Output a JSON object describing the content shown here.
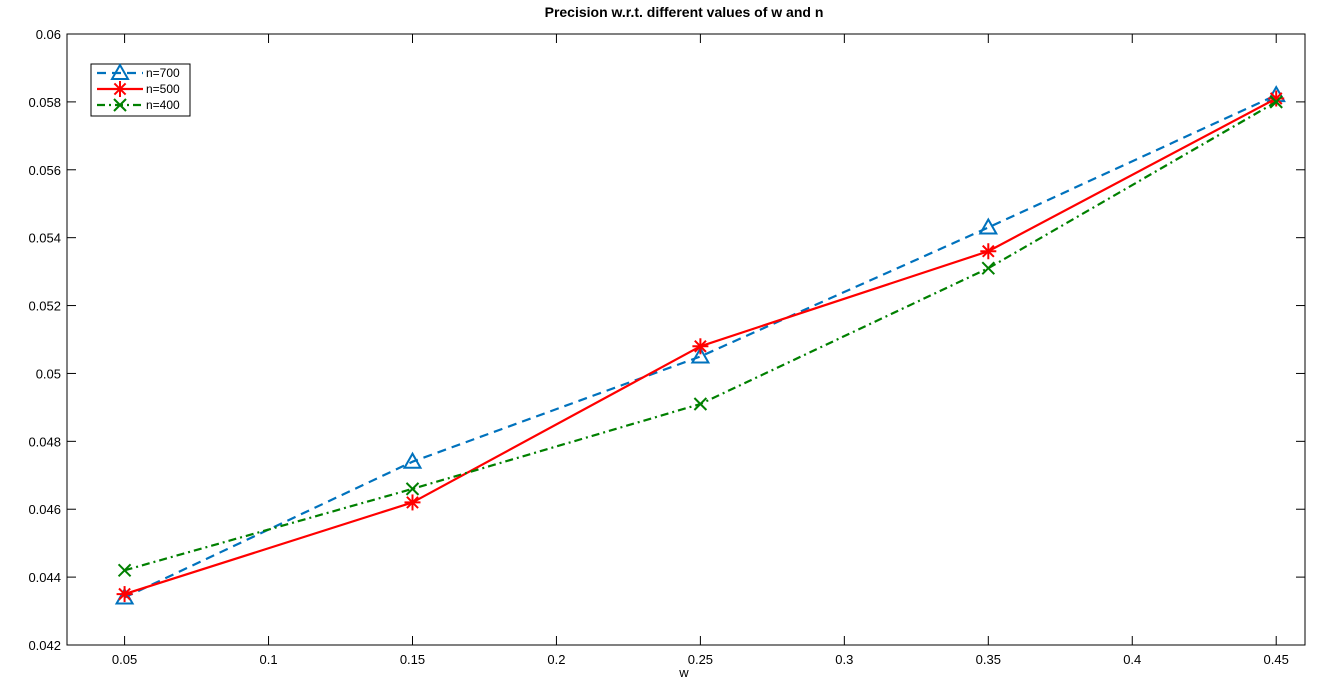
{
  "chart_data": {
    "type": "line",
    "title": "Precision w.r.t. different values of w and n",
    "xlabel": "w",
    "ylabel": "",
    "xlim": [
      0.03,
      0.46
    ],
    "ylim": [
      0.042,
      0.06
    ],
    "x": [
      0.05,
      0.15,
      0.25,
      0.35,
      0.45
    ],
    "xticks": [
      0.05,
      0.1,
      0.15,
      0.2,
      0.25,
      0.3,
      0.35,
      0.4,
      0.45
    ],
    "xtick_labels": [
      "0.05",
      "0.1",
      "0.15",
      "0.2",
      "0.25",
      "0.3",
      "0.35",
      "0.4",
      "0.45"
    ],
    "yticks": [
      0.042,
      0.044,
      0.046,
      0.048,
      0.05,
      0.052,
      0.054,
      0.056,
      0.058,
      0.06
    ],
    "ytick_labels": [
      "0.042",
      "0.044",
      "0.046",
      "0.048",
      "0.05",
      "0.052",
      "0.054",
      "0.056",
      "0.058",
      "0.06"
    ],
    "grid": false,
    "legend_position": "top-left",
    "series": [
      {
        "name": "n=700",
        "values": [
          0.0434,
          0.0474,
          0.0505,
          0.0543,
          0.0582
        ],
        "color": "#0072bd",
        "line": "dashed",
        "marker": "triangle"
      },
      {
        "name": "n=500",
        "values": [
          0.0435,
          0.0462,
          0.0508,
          0.0536,
          0.0581
        ],
        "color": "#ff0000",
        "line": "solid",
        "marker": "asterisk"
      },
      {
        "name": "n=400",
        "values": [
          0.0442,
          0.0466,
          0.0491,
          0.0531,
          0.058
        ],
        "color": "#008000",
        "line": "dashdot",
        "marker": "x"
      }
    ]
  }
}
